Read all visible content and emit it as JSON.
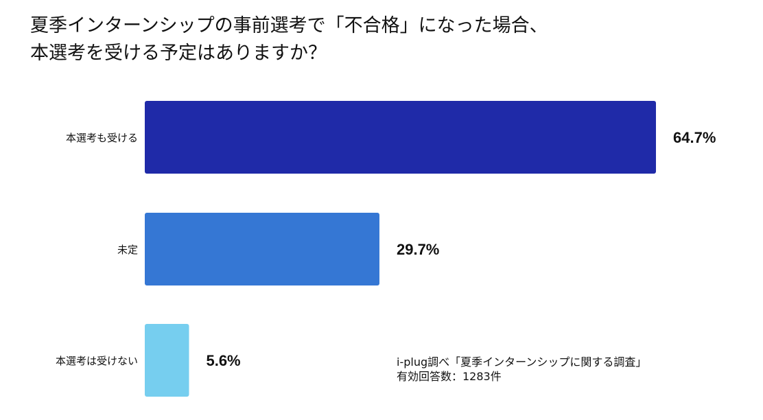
{
  "title_lines": [
    "夏季インターンシップの事前選考で「不合格」になった場合、",
    "本選考を受ける予定はありますか？"
  ],
  "note_lines": [
    "i-plug調べ「夏季インターンシップに関する調査」",
    "有効回答数：1283件"
  ],
  "chart_data": {
    "type": "bar",
    "orientation": "horizontal",
    "title": "夏季インターンシップの事前選考で「不合格」になった場合、本選考を受ける予定はありますか？",
    "categories": [
      "本選考も受ける",
      "未定",
      "本選考は受けない"
    ],
    "values": [
      64.7,
      29.7,
      5.6
    ],
    "value_labels": [
      "64.7%",
      "29.7%",
      "5.6%"
    ],
    "colors": [
      "#1f2aa8",
      "#3577d4",
      "#76ceef"
    ],
    "xlim": [
      0,
      64.7
    ],
    "grid": false,
    "legend": "none"
  }
}
